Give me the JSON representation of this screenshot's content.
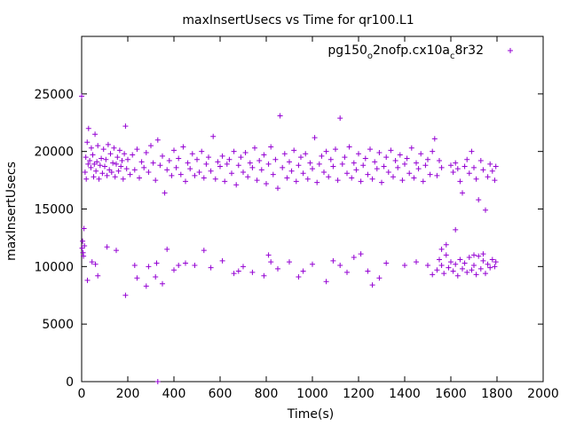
{
  "chart_data": {
    "type": "scatter",
    "title": "maxInsertUsecs vs Time for qr100.L1",
    "xlabel": "Time(s)",
    "ylabel": "maxInsertUsecs",
    "xlim": [
      0,
      2000
    ],
    "ylim": [
      0,
      30000
    ],
    "x_ticks": [
      0,
      200,
      400,
      600,
      800,
      1000,
      1200,
      1400,
      1600,
      1800,
      2000
    ],
    "y_ticks": [
      0,
      5000,
      10000,
      15000,
      20000,
      25000
    ],
    "grid": false,
    "legend": {
      "placement": "top-right",
      "entries": [
        {
          "name": "pg150_o2nofp.cx10a_c8r32",
          "label_main": "pg150",
          "label_sub1": "o",
          "label_mid": "2nofp.cx10a",
          "label_sub2": "c",
          "label_end": "8r32"
        }
      ]
    },
    "marker": "+",
    "color": "#9400d3",
    "series": [
      {
        "name": "pg150_o2nofp.cx10a_c8r32",
        "points": [
          [
            0,
            24800
          ],
          [
            2,
            11600
          ],
          [
            4,
            12200
          ],
          [
            6,
            11200
          ],
          [
            8,
            10900
          ],
          [
            10,
            13300
          ],
          [
            12,
            11800
          ],
          [
            15,
            18200
          ],
          [
            18,
            19500
          ],
          [
            20,
            17600
          ],
          [
            24,
            20800
          ],
          [
            28,
            18900
          ],
          [
            30,
            22000
          ],
          [
            35,
            19200
          ],
          [
            40,
            18600
          ],
          [
            42,
            20300
          ],
          [
            48,
            19700
          ],
          [
            52,
            17800
          ],
          [
            55,
            18900
          ],
          [
            58,
            21500
          ],
          [
            62,
            18300
          ],
          [
            66,
            19100
          ],
          [
            70,
            20500
          ],
          [
            75,
            17600
          ],
          [
            80,
            18800
          ],
          [
            85,
            19400
          ],
          [
            90,
            18100
          ],
          [
            95,
            20200
          ],
          [
            100,
            18700
          ],
          [
            105,
            19300
          ],
          [
            110,
            17900
          ],
          [
            115,
            20600
          ],
          [
            120,
            18400
          ],
          [
            125,
            19800
          ],
          [
            130,
            18200
          ],
          [
            135,
            19000
          ],
          [
            140,
            20300
          ],
          [
            145,
            17800
          ],
          [
            150,
            18900
          ],
          [
            155,
            19500
          ],
          [
            160,
            18300
          ],
          [
            165,
            20100
          ],
          [
            170,
            18700
          ],
          [
            175,
            19200
          ],
          [
            180,
            17600
          ],
          [
            185,
            19800
          ],
          [
            190,
            22200
          ],
          [
            195,
            18500
          ],
          [
            200,
            19300
          ],
          [
            210,
            18000
          ],
          [
            220,
            19700
          ],
          [
            230,
            18400
          ],
          [
            240,
            20200
          ],
          [
            250,
            17700
          ],
          [
            260,
            19100
          ],
          [
            270,
            18600
          ],
          [
            280,
            19900
          ],
          [
            290,
            18200
          ],
          [
            300,
            20500
          ],
          [
            310,
            19000
          ],
          [
            320,
            17500
          ],
          [
            330,
            21000
          ],
          [
            340,
            18800
          ],
          [
            350,
            19600
          ],
          [
            360,
            16400
          ],
          [
            370,
            18400
          ],
          [
            380,
            19200
          ],
          [
            390,
            17900
          ],
          [
            400,
            20100
          ],
          [
            410,
            18600
          ],
          [
            420,
            19400
          ],
          [
            430,
            18000
          ],
          [
            440,
            20400
          ],
          [
            450,
            17400
          ],
          [
            460,
            19000
          ],
          [
            470,
            18500
          ],
          [
            480,
            19800
          ],
          [
            490,
            17900
          ],
          [
            500,
            19300
          ],
          [
            510,
            18200
          ],
          [
            520,
            20000
          ],
          [
            530,
            17700
          ],
          [
            540,
            18900
          ],
          [
            550,
            19500
          ],
          [
            560,
            18300
          ],
          [
            570,
            21300
          ],
          [
            580,
            17600
          ],
          [
            590,
            19100
          ],
          [
            600,
            18700
          ],
          [
            610,
            19600
          ],
          [
            620,
            17400
          ],
          [
            630,
            18900
          ],
          [
            640,
            19300
          ],
          [
            650,
            18100
          ],
          [
            660,
            20000
          ],
          [
            670,
            17100
          ],
          [
            680,
            18800
          ],
          [
            690,
            19500
          ],
          [
            700,
            18200
          ],
          [
            710,
            19900
          ],
          [
            720,
            17800
          ],
          [
            730,
            19000
          ],
          [
            740,
            18600
          ],
          [
            750,
            20300
          ],
          [
            760,
            17500
          ],
          [
            770,
            19200
          ],
          [
            780,
            18400
          ],
          [
            790,
            19700
          ],
          [
            800,
            17200
          ],
          [
            810,
            18900
          ],
          [
            820,
            20400
          ],
          [
            830,
            18000
          ],
          [
            840,
            19300
          ],
          [
            850,
            16800
          ],
          [
            860,
            23100
          ],
          [
            870,
            18600
          ],
          [
            880,
            19800
          ],
          [
            890,
            17700
          ],
          [
            900,
            19100
          ],
          [
            910,
            18300
          ],
          [
            920,
            20100
          ],
          [
            930,
            17400
          ],
          [
            940,
            18800
          ],
          [
            950,
            19500
          ],
          [
            960,
            18100
          ],
          [
            970,
            19800
          ],
          [
            980,
            17600
          ],
          [
            990,
            19000
          ],
          [
            1000,
            18500
          ],
          [
            1010,
            21200
          ],
          [
            1020,
            17300
          ],
          [
            1030,
            18900
          ],
          [
            1040,
            19600
          ],
          [
            1050,
            18200
          ],
          [
            1060,
            20000
          ],
          [
            1070,
            17800
          ],
          [
            1080,
            19300
          ],
          [
            1090,
            18700
          ],
          [
            1100,
            20200
          ],
          [
            1110,
            17500
          ],
          [
            1120,
            22900
          ],
          [
            1130,
            18900
          ],
          [
            1140,
            19500
          ],
          [
            1150,
            18100
          ],
          [
            1160,
            20400
          ],
          [
            1170,
            17700
          ],
          [
            1180,
            19000
          ],
          [
            1190,
            18400
          ],
          [
            1200,
            19800
          ],
          [
            1210,
            17400
          ],
          [
            1220,
            18800
          ],
          [
            1230,
            19400
          ],
          [
            1240,
            18000
          ],
          [
            1250,
            20200
          ],
          [
            1260,
            17600
          ],
          [
            1270,
            19100
          ],
          [
            1280,
            18500
          ],
          [
            1290,
            19900
          ],
          [
            1300,
            17300
          ],
          [
            1310,
            18700
          ],
          [
            1320,
            19500
          ],
          [
            1330,
            18200
          ],
          [
            1340,
            20100
          ],
          [
            1350,
            17800
          ],
          [
            1360,
            19200
          ],
          [
            1370,
            18600
          ],
          [
            1380,
            19700
          ],
          [
            1390,
            17500
          ],
          [
            1400,
            18900
          ],
          [
            1410,
            19400
          ],
          [
            1420,
            18100
          ],
          [
            1430,
            20300
          ],
          [
            1440,
            17700
          ],
          [
            1450,
            19000
          ],
          [
            1460,
            18500
          ],
          [
            1470,
            19800
          ],
          [
            1480,
            17400
          ],
          [
            1490,
            18800
          ],
          [
            1500,
            19300
          ],
          [
            1510,
            18000
          ],
          [
            1520,
            20000
          ],
          [
            1530,
            21100
          ],
          [
            1540,
            17900
          ],
          [
            1550,
            19200
          ],
          [
            1560,
            18600
          ],
          [
            1600,
            18800
          ],
          [
            1610,
            18200
          ],
          [
            1620,
            19000
          ],
          [
            1630,
            18500
          ],
          [
            1640,
            17400
          ],
          [
            1650,
            16400
          ],
          [
            1660,
            18700
          ],
          [
            1670,
            19300
          ],
          [
            1680,
            18100
          ],
          [
            1690,
            20000
          ],
          [
            1700,
            18600
          ],
          [
            1710,
            17600
          ],
          [
            1720,
            15800
          ],
          [
            1730,
            19200
          ],
          [
            1740,
            18400
          ],
          [
            1750,
            14900
          ],
          [
            1760,
            17800
          ],
          [
            1770,
            18900
          ],
          [
            1780,
            18300
          ],
          [
            1790,
            17500
          ],
          [
            1795,
            18700
          ],
          [
            25,
            8800
          ],
          [
            45,
            10400
          ],
          [
            60,
            10200
          ],
          [
            70,
            9200
          ],
          [
            110,
            11700
          ],
          [
            150,
            11400
          ],
          [
            190,
            7500
          ],
          [
            230,
            10100
          ],
          [
            240,
            9000
          ],
          [
            280,
            8300
          ],
          [
            290,
            10000
          ],
          [
            320,
            9100
          ],
          [
            325,
            10300
          ],
          [
            330,
            0
          ],
          [
            350,
            8500
          ],
          [
            370,
            11500
          ],
          [
            400,
            9700
          ],
          [
            420,
            10100
          ],
          [
            450,
            10300
          ],
          [
            490,
            10100
          ],
          [
            530,
            11400
          ],
          [
            560,
            9900
          ],
          [
            610,
            10500
          ],
          [
            660,
            9400
          ],
          [
            680,
            9600
          ],
          [
            700,
            10000
          ],
          [
            740,
            9500
          ],
          [
            790,
            9200
          ],
          [
            810,
            11000
          ],
          [
            820,
            10400
          ],
          [
            850,
            9800
          ],
          [
            900,
            10400
          ],
          [
            940,
            9100
          ],
          [
            960,
            9600
          ],
          [
            1000,
            10200
          ],
          [
            1060,
            8700
          ],
          [
            1090,
            10500
          ],
          [
            1120,
            10100
          ],
          [
            1150,
            9500
          ],
          [
            1180,
            10800
          ],
          [
            1210,
            11100
          ],
          [
            1240,
            9600
          ],
          [
            1260,
            8400
          ],
          [
            1290,
            9000
          ],
          [
            1320,
            10300
          ],
          [
            1400,
            10100
          ],
          [
            1450,
            10400
          ],
          [
            1500,
            10100
          ],
          [
            1520,
            9300
          ],
          [
            1540,
            9700
          ],
          [
            1550,
            10600
          ],
          [
            1560,
            10100
          ],
          [
            1570,
            9400
          ],
          [
            1580,
            11000
          ],
          [
            1590,
            9900
          ],
          [
            1600,
            10400
          ],
          [
            1610,
            9600
          ],
          [
            1620,
            10200
          ],
          [
            1630,
            9200
          ],
          [
            1640,
            10600
          ],
          [
            1650,
            9800
          ],
          [
            1660,
            10300
          ],
          [
            1670,
            9500
          ],
          [
            1680,
            10800
          ],
          [
            1690,
            9700
          ],
          [
            1700,
            10100
          ],
          [
            1710,
            9300
          ],
          [
            1720,
            10900
          ],
          [
            1730,
            9800
          ],
          [
            1740,
            10500
          ],
          [
            1750,
            9400
          ],
          [
            1760,
            10200
          ],
          [
            1770,
            9900
          ],
          [
            1780,
            10600
          ],
          [
            1790,
            10000
          ],
          [
            1795,
            10400
          ],
          [
            1560,
            11500
          ],
          [
            1580,
            11900
          ],
          [
            1620,
            13200
          ],
          [
            1700,
            11000
          ],
          [
            1740,
            11100
          ]
        ]
      }
    ]
  }
}
